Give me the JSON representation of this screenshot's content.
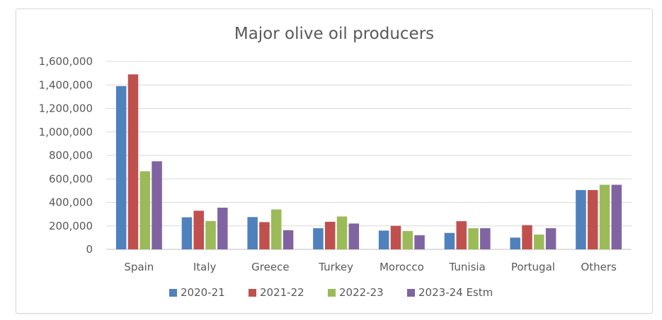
{
  "chart_data": {
    "type": "bar",
    "title": "Major olive oil producers",
    "xlabel": "",
    "ylabel": "",
    "categories": [
      "Spain",
      "Italy",
      "Greece",
      "Turkey",
      "Morocco",
      "Tunisia",
      "Portugal",
      "Others"
    ],
    "series": [
      {
        "name": "2020-21",
        "color": "#4f81bd",
        "values": [
          1390000,
          273000,
          275000,
          180000,
          160000,
          140000,
          100000,
          505000
        ]
      },
      {
        "name": "2021-22",
        "color": "#c0504d",
        "values": [
          1490000,
          329000,
          232000,
          235000,
          200000,
          240000,
          206000,
          505000
        ]
      },
      {
        "name": "2022-23",
        "color": "#9bbb59",
        "values": [
          665000,
          241000,
          340000,
          280000,
          156000,
          180000,
          126000,
          550000
        ]
      },
      {
        "name": "2023-24 Estm",
        "color": "#8064a2",
        "values": [
          750000,
          355000,
          163000,
          220000,
          120000,
          180000,
          180000,
          550000
        ]
      }
    ],
    "ylim": [
      0,
      1600000
    ],
    "yticks": [
      "0",
      "200,000",
      "400,000",
      "600,000",
      "800,000",
      "1,000,000",
      "1,200,000",
      "1,400,000",
      "1,600,000"
    ],
    "grid": true,
    "legend_position": "bottom"
  }
}
